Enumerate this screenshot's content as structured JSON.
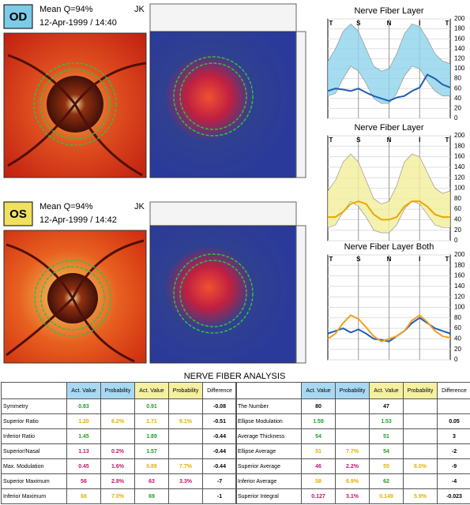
{
  "eyes": [
    {
      "eye": "OD",
      "mean": "Mean Q=94%",
      "operator": "JK",
      "date": "12-Apr-1999 / 14:40"
    },
    {
      "eye": "OS",
      "mean": "Mean Q=94%",
      "operator": "JK",
      "date": "12-Apr-1999 / 14:42"
    }
  ],
  "plots": [
    {
      "type": "line",
      "title": "Nerve Fiber Layer",
      "categories": [
        "T",
        "S",
        "N",
        "I",
        "T"
      ],
      "ylim": [
        0,
        200
      ],
      "yticks": [
        0,
        20,
        40,
        60,
        80,
        100,
        120,
        140,
        160,
        180,
        200
      ],
      "band": {
        "color": "#8fd3ec",
        "upper": [
          115,
          140,
          175,
          190,
          175,
          140,
          105,
          95,
          100,
          130,
          170,
          190,
          185,
          160,
          130,
          115,
          110
        ],
        "lower": [
          45,
          50,
          80,
          105,
          95,
          70,
          40,
          30,
          30,
          50,
          85,
          105,
          100,
          75,
          55,
          45,
          45
        ]
      },
      "series": [
        {
          "color": "#1f5fb0",
          "values": [
            55,
            60,
            58,
            55,
            60,
            52,
            45,
            40,
            35,
            42,
            45,
            55,
            62,
            88,
            80,
            68,
            62
          ]
        }
      ]
    },
    {
      "type": "line",
      "title": "Nerve Fiber Layer",
      "categories": [
        "T",
        "S",
        "N",
        "I",
        "T"
      ],
      "ylim": [
        0,
        200
      ],
      "yticks": [
        0,
        20,
        40,
        60,
        80,
        100,
        120,
        140,
        160,
        180,
        200
      ],
      "band": {
        "color": "#f3ee9a",
        "upper": [
          95,
          115,
          150,
          165,
          150,
          115,
          80,
          70,
          75,
          105,
          150,
          165,
          160,
          130,
          100,
          90,
          95
        ],
        "lower": [
          25,
          30,
          55,
          75,
          65,
          45,
          20,
          15,
          15,
          30,
          60,
          75,
          70,
          50,
          30,
          25,
          25
        ]
      },
      "series": [
        {
          "color": "#e8a800",
          "values": [
            45,
            45,
            55,
            70,
            75,
            70,
            50,
            40,
            40,
            45,
            65,
            75,
            75,
            65,
            50,
            45,
            45
          ]
        }
      ]
    },
    {
      "type": "line",
      "title": "Nerve Fiber Layer Both",
      "categories": [
        "T",
        "S",
        "N",
        "I",
        "T"
      ],
      "ylim": [
        0,
        200
      ],
      "yticks": [
        0,
        20,
        40,
        60,
        80,
        100,
        120,
        140,
        160,
        180,
        200
      ],
      "series": [
        {
          "color": "#1f5fb0",
          "values": [
            50,
            55,
            60,
            52,
            58,
            50,
            40,
            38,
            35,
            45,
            55,
            70,
            80,
            70,
            60,
            55,
            50
          ]
        },
        {
          "color": "#f0a020",
          "values": [
            40,
            50,
            70,
            85,
            78,
            62,
            45,
            35,
            40,
            45,
            55,
            75,
            85,
            72,
            55,
            45,
            42
          ]
        }
      ]
    }
  ],
  "analysis": {
    "title": "NERVE FIBER ANALYSIS",
    "tables": [
      {
        "header": [
          null,
          {
            "text": "Act. Value",
            "color": "#a9d8f2"
          },
          {
            "text": "Probability",
            "color": "#a9d8f2"
          },
          {
            "text": "Act. Value",
            "color": "#f5f0a0"
          },
          {
            "text": "Probability",
            "color": "#f5f0a0"
          },
          {
            "text": "Difference",
            "color": "#ffffff"
          }
        ],
        "rows": [
          [
            "Symmetry",
            {
              "text": "0.83",
              "color": "#22a022"
            },
            null,
            {
              "text": "0.91",
              "color": "#22a022"
            },
            null,
            {
              "text": "-0.08",
              "color": "#000000"
            }
          ],
          [
            "Superior Ratio",
            {
              "text": "1.20",
              "color": "#e0b000"
            },
            {
              "text": "6.2%",
              "color": "#e0b000"
            },
            {
              "text": "1.71",
              "color": "#e0b000"
            },
            {
              "text": "9.1%",
              "color": "#e0b000"
            },
            {
              "text": "-0.51",
              "color": "#000000"
            }
          ],
          [
            "Inferior Ratio",
            {
              "text": "1.45",
              "color": "#22a022"
            },
            null,
            {
              "text": "1.89",
              "color": "#22a022"
            },
            null,
            {
              "text": "-0.44",
              "color": "#000000"
            }
          ],
          [
            "Superior/Nasal",
            {
              "text": "1.13",
              "color": "#d0106a"
            },
            {
              "text": "0.2%",
              "color": "#d0106a"
            },
            {
              "text": "1.57",
              "color": "#22a022"
            },
            null,
            {
              "text": "-0.44",
              "color": "#000000"
            }
          ],
          [
            "Max. Modulation",
            {
              "text": "0.45",
              "color": "#d0106a"
            },
            {
              "text": "1.6%",
              "color": "#d0106a"
            },
            {
              "text": "0.89",
              "color": "#e0b000"
            },
            {
              "text": "7.7%",
              "color": "#e0b000"
            },
            {
              "text": "-0.44",
              "color": "#000000"
            }
          ],
          [
            "Superior Maximum",
            {
              "text": "56",
              "color": "#d0106a"
            },
            {
              "text": "2.8%",
              "color": "#d0106a"
            },
            {
              "text": "63",
              "color": "#d0106a"
            },
            {
              "text": "3.3%",
              "color": "#d0106a"
            },
            {
              "text": "-7",
              "color": "#000000"
            }
          ],
          [
            "Inferior Maximum",
            {
              "text": "68",
              "color": "#e0b000"
            },
            {
              "text": "7.0%",
              "color": "#e0b000"
            },
            {
              "text": "69",
              "color": "#22a022"
            },
            null,
            {
              "text": "-1",
              "color": "#000000"
            }
          ]
        ]
      },
      {
        "header": [
          null,
          {
            "text": "Act. Value",
            "color": "#a9d8f2"
          },
          {
            "text": "Probability",
            "color": "#a9d8f2"
          },
          {
            "text": "Act. Value",
            "color": "#f5f0a0"
          },
          {
            "text": "Probability",
            "color": "#f5f0a0"
          },
          {
            "text": "Difference",
            "color": "#ffffff"
          }
        ],
        "rows": [
          [
            "The Number",
            {
              "text": "80",
              "color": "#000000"
            },
            null,
            {
              "text": "47",
              "color": "#000000"
            },
            null,
            null
          ],
          [
            "Ellipse Modulation",
            {
              "text": "1.59",
              "color": "#22a022"
            },
            null,
            {
              "text": "1.53",
              "color": "#22a022"
            },
            null,
            {
              "text": "0.05",
              "color": "#000000"
            }
          ],
          [
            "Average Thickness",
            {
              "text": "54",
              "color": "#22a022"
            },
            null,
            {
              "text": "51",
              "color": "#22a022"
            },
            null,
            {
              "text": "3",
              "color": "#000000"
            }
          ],
          [
            "Ellipse Average",
            {
              "text": "51",
              "color": "#e0b000"
            },
            {
              "text": "7.7%",
              "color": "#e0b000"
            },
            {
              "text": "54",
              "color": "#22a022"
            },
            null,
            {
              "text": "-2",
              "color": "#000000"
            }
          ],
          [
            "Superior Average",
            {
              "text": "46",
              "color": "#d0106a"
            },
            {
              "text": "2.2%",
              "color": "#d0106a"
            },
            {
              "text": "55",
              "color": "#e0b000"
            },
            {
              "text": "6.0%",
              "color": "#e0b000"
            },
            {
              "text": "-9",
              "color": "#000000"
            }
          ],
          [
            "Inferior Average",
            {
              "text": "58",
              "color": "#e0b000"
            },
            {
              "text": "6.9%",
              "color": "#e0b000"
            },
            {
              "text": "62",
              "color": "#22a022"
            },
            null,
            {
              "text": "-4",
              "color": "#000000"
            }
          ],
          [
            "Superior Integral",
            {
              "text": "0.127",
              "color": "#d0106a"
            },
            {
              "text": "3.1%",
              "color": "#d0106a"
            },
            {
              "text": "0.149",
              "color": "#e0b000"
            },
            {
              "text": "5.9%",
              "color": "#e0b000"
            },
            {
              "text": "-0.023",
              "color": "#000000"
            }
          ]
        ]
      }
    ]
  }
}
